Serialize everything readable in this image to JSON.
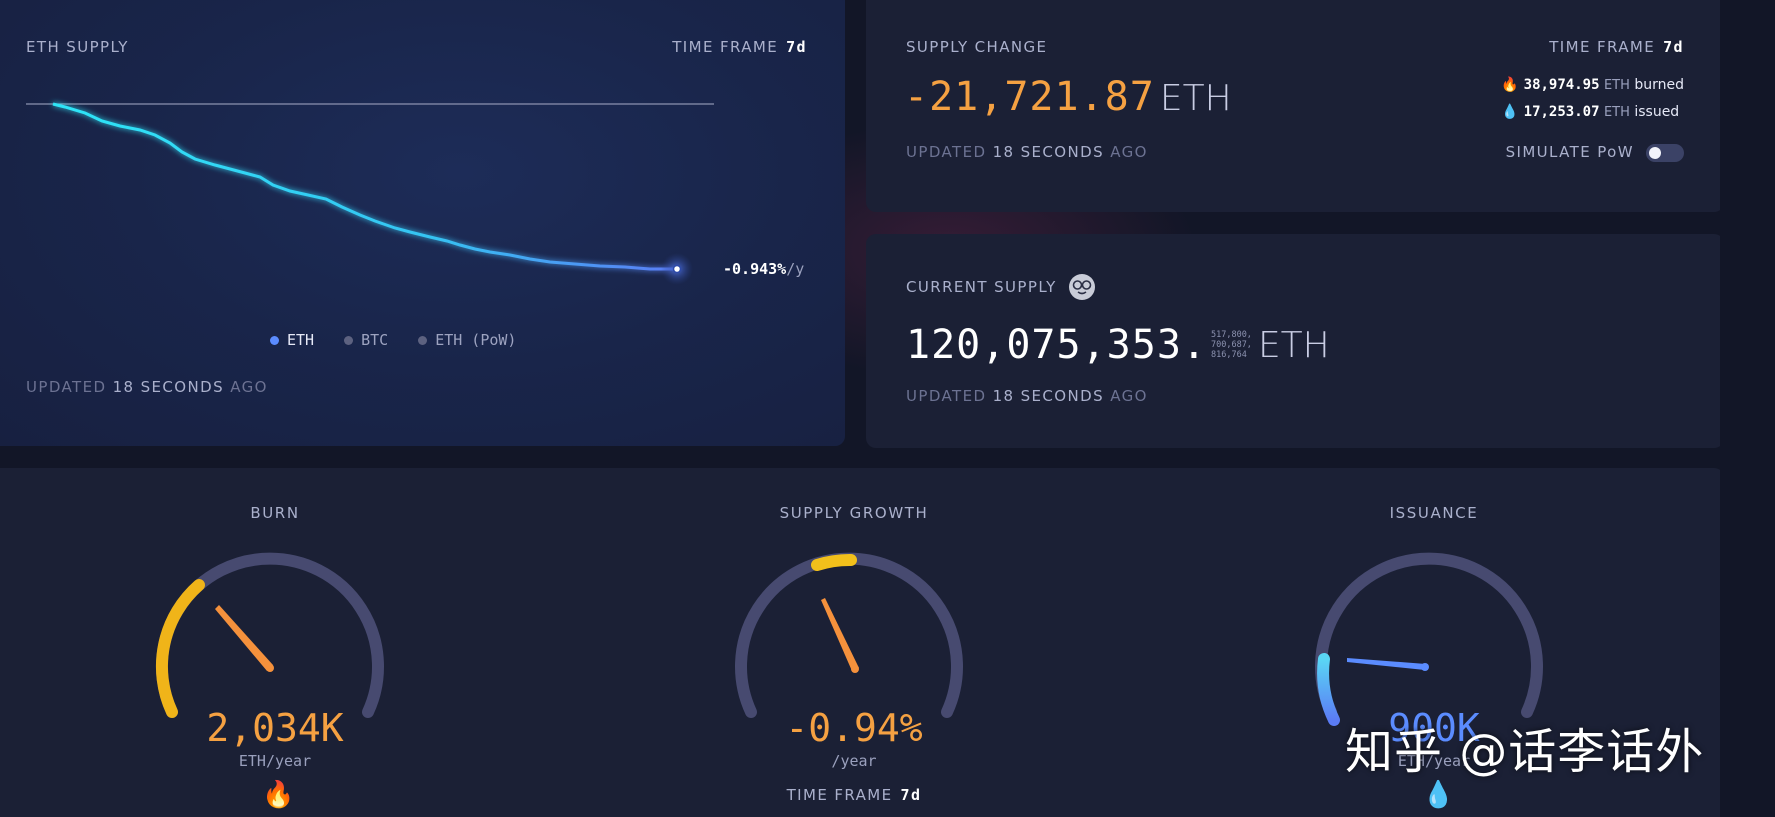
{
  "supply_card": {
    "title": "ETH SUPPLY",
    "timeframe_label": "TIME FRAME",
    "timeframe_value": "7d",
    "rate_value": "-0.943%",
    "rate_unit": "/y",
    "legend": [
      {
        "label": "ETH",
        "color": "#5b8cff",
        "active": true
      },
      {
        "label": "BTC",
        "color": "#5d6280",
        "active": false
      },
      {
        "label": "ETH (PoW)",
        "color": "#5d6280",
        "active": false
      }
    ],
    "updated_prefix": "UPDATED",
    "updated_value": "18 SECONDS",
    "updated_suffix": "AGO"
  },
  "change_card": {
    "title": "SUPPLY CHANGE",
    "timeframe_label": "TIME FRAME",
    "timeframe_value": "7d",
    "value": "-21,721.87",
    "unit": "ETH",
    "burned_value": "38,974.95",
    "burned_unit": "ETH",
    "burned_label": "burned",
    "issued_value": "17,253.07",
    "issued_unit": "ETH",
    "issued_label": "issued",
    "updated_prefix": "UPDATED",
    "updated_value": "18 SECONDS",
    "updated_suffix": "AGO",
    "simulate_label": "SIMULATE PoW",
    "simulate_on": false
  },
  "current_card": {
    "title": "CURRENT SUPPLY",
    "value_main": "120,075,353.",
    "decimals_1": "517,800,",
    "decimals_2": "700,687,",
    "decimals_3": "816,764",
    "unit": "ETH",
    "updated_prefix": "UPDATED",
    "updated_value": "18 SECONDS",
    "updated_suffix": "AGO"
  },
  "gauges": {
    "burn": {
      "title": "BURN",
      "value": "2,034K",
      "unit": "ETH/year",
      "icon": "fire-icon"
    },
    "growth": {
      "title": "SUPPLY GROWTH",
      "value": "-0.94%",
      "unit": "/year",
      "timeframe_label": "TIME FRAME",
      "timeframe_value": "7d"
    },
    "issuance": {
      "title": "ISSUANCE",
      "value": "900K",
      "unit": "ETH/year",
      "icon": "droplet-icon"
    }
  },
  "watermark": "知乎 @话李话外",
  "colors": {
    "accent_orange": "#f5a142",
    "accent_yellow": "#f2c01b",
    "accent_blue": "#5b8cff",
    "line_cyan": "#2ee0f5",
    "gauge_track": "#474a70"
  }
}
